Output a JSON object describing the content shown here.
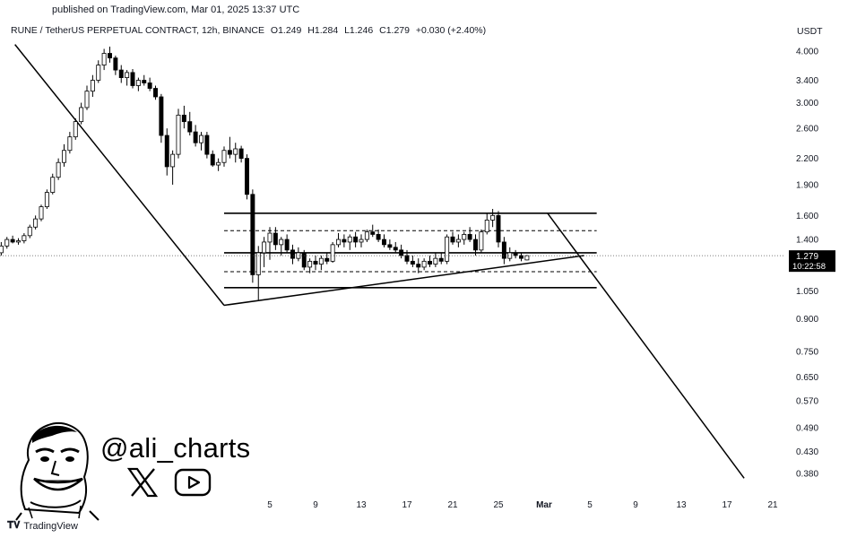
{
  "header": {
    "published": "published on TradingView.com, Mar 01, 2025 13:37 UTC",
    "symbol": "RUNE / TetherUS PERPETUAL CONTRACT, 12h, BINANCE",
    "open": "O1.249",
    "high": "H1.284",
    "low": "L1.246",
    "close": "C1.279",
    "change": "+0.030 (+2.40%)",
    "currency": "USDT"
  },
  "watermark": {
    "handle": "@ali_charts",
    "icons": [
      "cartoon-face-avatar",
      "x-logo-icon",
      "youtube-logo-icon"
    ]
  },
  "branding": {
    "logo_text": "TradingView"
  },
  "price_marker": {
    "price": "1.279",
    "countdown": "10:22:58"
  },
  "chart_data": {
    "type": "candlestick",
    "scale": "log",
    "ylim": [
      0.35,
      4.3
    ],
    "y_ticks": [
      "4.000",
      "3.400",
      "3.000",
      "2.600",
      "2.200",
      "1.900",
      "1.600",
      "1.400",
      "1.050",
      "0.900",
      "0.750",
      "0.650",
      "0.570",
      "0.490",
      "0.430",
      "0.380"
    ],
    "y_tick_values": [
      4.0,
      3.4,
      3.0,
      2.6,
      2.2,
      1.9,
      1.6,
      1.4,
      1.05,
      0.9,
      0.75,
      0.65,
      0.57,
      0.49,
      0.43,
      0.38
    ],
    "x_ticks": [
      "5",
      "9",
      "13",
      "17",
      "21",
      "25",
      "Mar",
      "5",
      "9",
      "13",
      "17",
      "21"
    ],
    "x_tick_days": [
      36,
      40,
      44,
      48,
      52,
      56,
      60,
      64,
      68,
      72,
      76,
      80
    ],
    "day_start": 12.5,
    "candles": [
      [
        1.3,
        1.38,
        1.28,
        1.35
      ],
      [
        1.35,
        1.42,
        1.33,
        1.4
      ],
      [
        1.4,
        1.43,
        1.37,
        1.38
      ],
      [
        1.38,
        1.41,
        1.36,
        1.39
      ],
      [
        1.39,
        1.45,
        1.37,
        1.43
      ],
      [
        1.43,
        1.52,
        1.41,
        1.5
      ],
      [
        1.5,
        1.6,
        1.48,
        1.57
      ],
      [
        1.57,
        1.7,
        1.55,
        1.68
      ],
      [
        1.68,
        1.85,
        1.66,
        1.82
      ],
      [
        1.82,
        2.02,
        1.8,
        1.98
      ],
      [
        1.98,
        2.2,
        1.95,
        2.15
      ],
      [
        2.15,
        2.38,
        2.1,
        2.3
      ],
      [
        2.3,
        2.55,
        2.26,
        2.48
      ],
      [
        2.48,
        2.75,
        2.44,
        2.7
      ],
      [
        2.7,
        3.0,
        2.66,
        2.92
      ],
      [
        2.92,
        3.3,
        2.88,
        3.2
      ],
      [
        3.2,
        3.5,
        3.1,
        3.4
      ],
      [
        3.4,
        3.8,
        3.35,
        3.7
      ],
      [
        3.7,
        4.05,
        3.6,
        3.95
      ],
      [
        3.95,
        4.1,
        3.75,
        3.85
      ],
      [
        3.85,
        3.9,
        3.5,
        3.6
      ],
      [
        3.6,
        3.7,
        3.35,
        3.45
      ],
      [
        3.45,
        3.6,
        3.3,
        3.55
      ],
      [
        3.55,
        3.62,
        3.25,
        3.3
      ],
      [
        3.3,
        3.45,
        3.2,
        3.4
      ],
      [
        3.4,
        3.5,
        3.3,
        3.35
      ],
      [
        3.35,
        3.45,
        3.2,
        3.25
      ],
      [
        3.25,
        3.3,
        3.05,
        3.1
      ],
      [
        3.1,
        3.15,
        2.4,
        2.5
      ],
      [
        2.5,
        2.6,
        2.0,
        2.1
      ],
      [
        2.1,
        2.3,
        1.9,
        2.25
      ],
      [
        2.25,
        2.9,
        2.2,
        2.8
      ],
      [
        2.8,
        2.95,
        2.6,
        2.7
      ],
      [
        2.7,
        2.85,
        2.5,
        2.55
      ],
      [
        2.55,
        2.65,
        2.35,
        2.4
      ],
      [
        2.4,
        2.55,
        2.3,
        2.5
      ],
      [
        2.5,
        2.55,
        2.2,
        2.25
      ],
      [
        2.25,
        2.3,
        2.1,
        2.12
      ],
      [
        2.12,
        2.2,
        2.05,
        2.15
      ],
      [
        2.15,
        2.35,
        2.1,
        2.3
      ],
      [
        2.3,
        2.48,
        2.2,
        2.25
      ],
      [
        2.25,
        2.4,
        2.15,
        2.32
      ],
      [
        2.32,
        2.36,
        2.15,
        2.2
      ],
      [
        2.2,
        2.25,
        1.75,
        1.8
      ],
      [
        1.8,
        1.85,
        1.1,
        1.15
      ],
      [
        1.15,
        1.35,
        1.0,
        1.3
      ],
      [
        1.3,
        1.42,
        1.2,
        1.38
      ],
      [
        1.38,
        1.5,
        1.25,
        1.45
      ],
      [
        1.45,
        1.5,
        1.32,
        1.36
      ],
      [
        1.36,
        1.42,
        1.28,
        1.4
      ],
      [
        1.4,
        1.44,
        1.3,
        1.32
      ],
      [
        1.32,
        1.36,
        1.22,
        1.26
      ],
      [
        1.26,
        1.34,
        1.24,
        1.3
      ],
      [
        1.3,
        1.32,
        1.18,
        1.2
      ],
      [
        1.2,
        1.26,
        1.16,
        1.24
      ],
      [
        1.24,
        1.28,
        1.18,
        1.22
      ],
      [
        1.22,
        1.28,
        1.18,
        1.26
      ],
      [
        1.26,
        1.3,
        1.22,
        1.24
      ],
      [
        1.24,
        1.38,
        1.23,
        1.36
      ],
      [
        1.36,
        1.45,
        1.34,
        1.4
      ],
      [
        1.4,
        1.44,
        1.34,
        1.38
      ],
      [
        1.38,
        1.44,
        1.32,
        1.42
      ],
      [
        1.42,
        1.46,
        1.34,
        1.38
      ],
      [
        1.38,
        1.44,
        1.34,
        1.4
      ],
      [
        1.4,
        1.48,
        1.38,
        1.46
      ],
      [
        1.46,
        1.52,
        1.42,
        1.44
      ],
      [
        1.44,
        1.48,
        1.38,
        1.4
      ],
      [
        1.4,
        1.44,
        1.34,
        1.36
      ],
      [
        1.36,
        1.4,
        1.32,
        1.34
      ],
      [
        1.34,
        1.38,
        1.3,
        1.32
      ],
      [
        1.32,
        1.36,
        1.26,
        1.28
      ],
      [
        1.28,
        1.32,
        1.22,
        1.24
      ],
      [
        1.24,
        1.28,
        1.2,
        1.22
      ],
      [
        1.22,
        1.26,
        1.16,
        1.2
      ],
      [
        1.2,
        1.26,
        1.18,
        1.24
      ],
      [
        1.24,
        1.28,
        1.2,
        1.22
      ],
      [
        1.22,
        1.3,
        1.2,
        1.26
      ],
      [
        1.26,
        1.3,
        1.22,
        1.24
      ],
      [
        1.24,
        1.44,
        1.22,
        1.42
      ],
      [
        1.42,
        1.46,
        1.36,
        1.38
      ],
      [
        1.38,
        1.44,
        1.34,
        1.4
      ],
      [
        1.4,
        1.46,
        1.36,
        1.44
      ],
      [
        1.44,
        1.5,
        1.38,
        1.4
      ],
      [
        1.4,
        1.44,
        1.28,
        1.32
      ],
      [
        1.32,
        1.48,
        1.3,
        1.46
      ],
      [
        1.46,
        1.62,
        1.44,
        1.56
      ],
      [
        1.56,
        1.66,
        1.5,
        1.6
      ],
      [
        1.6,
        1.64,
        1.34,
        1.38
      ],
      [
        1.38,
        1.42,
        1.22,
        1.26
      ],
      [
        1.26,
        1.34,
        1.24,
        1.3
      ],
      [
        1.3,
        1.32,
        1.26,
        1.28
      ],
      [
        1.28,
        1.3,
        1.24,
        1.26
      ],
      [
        1.249,
        1.284,
        1.246,
        1.279
      ]
    ],
    "channel_lines": [
      {
        "price": 1.62,
        "style": "solid"
      },
      {
        "price": 1.47,
        "style": "dashed"
      },
      {
        "price": 1.3,
        "style": "solid"
      },
      {
        "price": 1.17,
        "style": "dashed"
      },
      {
        "price": 1.07,
        "style": "solid"
      }
    ],
    "trendlines": [
      {
        "from": [
          13.7,
          4.15
        ],
        "to": [
          32.0,
          0.97
        ]
      },
      {
        "from": [
          32.0,
          0.97
        ],
        "to": [
          63.5,
          1.28
        ]
      },
      {
        "from": [
          60.3,
          1.62
        ],
        "to": [
          77.5,
          0.37
        ]
      }
    ],
    "last_price": 1.279
  }
}
